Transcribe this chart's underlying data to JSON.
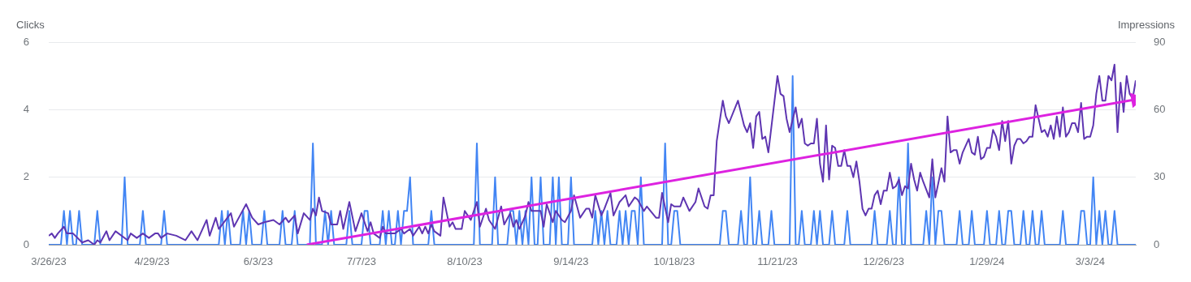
{
  "chart_data": {
    "type": "line",
    "ylabel": "Clicks",
    "y2label": "Impressions",
    "xlim": [
      "2023-03-26",
      "2024-03-18"
    ],
    "xticks": [
      {
        "value": "2023-03-26",
        "label": "3/26/23"
      },
      {
        "value": "2023-04-29",
        "label": "4/29/23"
      },
      {
        "value": "2023-06-03",
        "label": "6/3/23"
      },
      {
        "value": "2023-07-07",
        "label": "7/7/23"
      },
      {
        "value": "2023-08-10",
        "label": "8/10/23"
      },
      {
        "value": "2023-09-14",
        "label": "9/14/23"
      },
      {
        "value": "2023-10-18",
        "label": "10/18/23"
      },
      {
        "value": "2023-11-21",
        "label": "11/21/23"
      },
      {
        "value": "2023-12-26",
        "label": "12/26/23"
      },
      {
        "value": "2024-01-29",
        "label": "1/29/24"
      },
      {
        "value": "2024-03-03",
        "label": "3/3/24"
      }
    ],
    "ylim": [
      0,
      6
    ],
    "yticks": [
      0,
      2,
      4,
      6
    ],
    "y2lim": [
      0,
      90
    ],
    "y2ticks": [
      0,
      30,
      60,
      90
    ],
    "grid": "y",
    "series": [
      {
        "type": "line",
        "color": "#dd22e0",
        "axis": "y",
        "marker": "triangle",
        "x": [
          "2023-06-19",
          "2024-03-18"
        ],
        "values": [
          0,
          4.3
        ]
      },
      {
        "color": "#5e35b1",
        "axis": "y2",
        "x": [
          "2023-03-26",
          "2023-03-27",
          "2023-03-28",
          "2023-03-29",
          "2023-03-31",
          "2023-04-01",
          "2023-04-03",
          "2023-04-06",
          "2023-04-08",
          "2023-04-10",
          "2023-04-11",
          "2023-04-12",
          "2023-04-14",
          "2023-04-15",
          "2023-04-17",
          "2023-04-21",
          "2023-04-22",
          "2023-04-24",
          "2023-04-26",
          "2023-04-28",
          "2023-04-30",
          "2023-05-01",
          "2023-05-02",
          "2023-05-04",
          "2023-05-07",
          "2023-05-10",
          "2023-05-12",
          "2023-05-14",
          "2023-05-17",
          "2023-05-18",
          "2023-05-20",
          "2023-05-21",
          "2023-05-25",
          "2023-05-26",
          "2023-05-28",
          "2023-05-30",
          "2023-06-01",
          "2023-06-03",
          "2023-06-05",
          "2023-06-08",
          "2023-06-10",
          "2023-06-12",
          "2023-06-13",
          "2023-06-15",
          "2023-06-16",
          "2023-06-18",
          "2023-06-20",
          "2023-06-21",
          "2023-06-22",
          "2023-06-23",
          "2023-06-24",
          "2023-06-26",
          "2023-06-27",
          "2023-06-29",
          "2023-06-30",
          "2023-07-01",
          "2023-07-03",
          "2023-07-05",
          "2023-07-07",
          "2023-07-09",
          "2023-07-10",
          "2023-07-11",
          "2023-07-13",
          "2023-07-14",
          "2023-07-15",
          "2023-07-18",
          "2023-07-20",
          "2023-07-21",
          "2023-07-23",
          "2023-07-24",
          "2023-07-26",
          "2023-07-27",
          "2023-07-28",
          "2023-07-29",
          "2023-07-30",
          "2023-07-31",
          "2023-08-02",
          "2023-08-03",
          "2023-08-05",
          "2023-08-06",
          "2023-08-07",
          "2023-08-09",
          "2023-08-10",
          "2023-08-12",
          "2023-08-14",
          "2023-08-15",
          "2023-08-17",
          "2023-08-18",
          "2023-08-20",
          "2023-08-22",
          "2023-08-23",
          "2023-08-25",
          "2023-08-26",
          "2023-08-27",
          "2023-08-28",
          "2023-08-30",
          "2023-08-31",
          "2023-09-01",
          "2023-09-04",
          "2023-09-05",
          "2023-09-06",
          "2023-09-08",
          "2023-09-09",
          "2023-09-11",
          "2023-09-12",
          "2023-09-14",
          "2023-09-15",
          "2023-09-17",
          "2023-09-19",
          "2023-09-20",
          "2023-09-21",
          "2023-09-22",
          "2023-09-24",
          "2023-09-25",
          "2023-09-27",
          "2023-09-28",
          "2023-09-30",
          "2023-10-02",
          "2023-10-03",
          "2023-10-05",
          "2023-10-06",
          "2023-10-08",
          "2023-10-09",
          "2023-10-12",
          "2023-10-13",
          "2023-10-14",
          "2023-10-16",
          "2023-10-17",
          "2023-10-18",
          "2023-10-20",
          "2023-10-21",
          "2023-10-23",
          "2023-10-25",
          "2023-10-26",
          "2023-10-28",
          "2023-10-29",
          "2023-10-30",
          "2023-10-31",
          "2023-11-01",
          "2023-11-03",
          "2023-11-04",
          "2023-11-05",
          "2023-11-08",
          "2023-11-10",
          "2023-11-11",
          "2023-11-12",
          "2023-11-13",
          "2023-11-14",
          "2023-11-15",
          "2023-11-16",
          "2023-11-17",
          "2023-11-18",
          "2023-11-21",
          "2023-11-22",
          "2023-11-23",
          "2023-11-24",
          "2023-11-25",
          "2023-11-27",
          "2023-11-28",
          "2023-11-29",
          "2023-11-30",
          "2023-12-01",
          "2023-12-02",
          "2023-12-03",
          "2023-12-04",
          "2023-12-05",
          "2023-12-06",
          "2023-12-07",
          "2023-12-08",
          "2023-12-09",
          "2023-12-10",
          "2023-12-11",
          "2023-12-12",
          "2023-12-13",
          "2023-12-14",
          "2023-12-15",
          "2023-12-16",
          "2023-12-17",
          "2023-12-18",
          "2023-12-19",
          "2023-12-20",
          "2023-12-21",
          "2023-12-22",
          "2023-12-23",
          "2023-12-24",
          "2023-12-25",
          "2023-12-26",
          "2023-12-27",
          "2023-12-28",
          "2023-12-29",
          "2023-12-30",
          "2023-12-31",
          "2024-01-01",
          "2024-01-02",
          "2024-01-03",
          "2024-01-04",
          "2024-01-05",
          "2024-01-06",
          "2024-01-07",
          "2024-01-08",
          "2024-01-10",
          "2024-01-11",
          "2024-01-12",
          "2024-01-14",
          "2024-01-15",
          "2024-01-16",
          "2024-01-17",
          "2024-01-18",
          "2024-01-19",
          "2024-01-20",
          "2024-01-21",
          "2024-01-23",
          "2024-01-24",
          "2024-01-25",
          "2024-01-26",
          "2024-01-27",
          "2024-01-28",
          "2024-01-29",
          "2024-01-30",
          "2024-01-31",
          "2024-02-01",
          "2024-02-02",
          "2024-02-03",
          "2024-02-04",
          "2024-02-05",
          "2024-02-06",
          "2024-02-07",
          "2024-02-08",
          "2024-02-09",
          "2024-02-10",
          "2024-02-11",
          "2024-02-12",
          "2024-02-13",
          "2024-02-14",
          "2024-02-16",
          "2024-02-17",
          "2024-02-18",
          "2024-02-19",
          "2024-02-20",
          "2024-02-21",
          "2024-02-22",
          "2024-02-23",
          "2024-02-24",
          "2024-02-25",
          "2024-02-26",
          "2024-02-27",
          "2024-02-28",
          "2024-02-29",
          "2024-03-01",
          "2024-03-02",
          "2024-03-03",
          "2024-03-04",
          "2024-03-05",
          "2024-03-06",
          "2024-03-07",
          "2024-03-08",
          "2024-03-09",
          "2024-03-10",
          "2024-03-11",
          "2024-03-12",
          "2024-03-13",
          "2024-03-14",
          "2024-03-15",
          "2024-03-16",
          "2024-03-17",
          "2024-03-18"
        ],
        "values": [
          4,
          5,
          3,
          5,
          8,
          5,
          5,
          1,
          2,
          0,
          2,
          1,
          6,
          2,
          6,
          2,
          5,
          3,
          5,
          3,
          5,
          5,
          3,
          5,
          4,
          2,
          6,
          2,
          11,
          4,
          12,
          7,
          14,
          8,
          13,
          18,
          12,
          9,
          10,
          11,
          9,
          12,
          10,
          13,
          5,
          14,
          11,
          16,
          13,
          21,
          15,
          14,
          9,
          9,
          15,
          7,
          19,
          6,
          14,
          6,
          10,
          5,
          3,
          8,
          5,
          5,
          7,
          5,
          7,
          4,
          8,
          5,
          8,
          5,
          9,
          6,
          4,
          21,
          8,
          10,
          7,
          7,
          15,
          11,
          19,
          8,
          16,
          11,
          7,
          17,
          9,
          14,
          8,
          11,
          7,
          13,
          19,
          15,
          15,
          8,
          18,
          10,
          15,
          11,
          10,
          15,
          22,
          12,
          16,
          16,
          12,
          22,
          13,
          16,
          23,
          13,
          19,
          22,
          17,
          21,
          20,
          15,
          17,
          12,
          12,
          23,
          10,
          18,
          17,
          17,
          21,
          15,
          19,
          25,
          17,
          16,
          22,
          22,
          46,
          64,
          57,
          54,
          64,
          53,
          50,
          54,
          43,
          57,
          59,
          47,
          48,
          41,
          75,
          67,
          66,
          56,
          50,
          61,
          52,
          56,
          45,
          44,
          45,
          45,
          56,
          36,
          28,
          53,
          29,
          44,
          43,
          35,
          35,
          42,
          35,
          35,
          30,
          37,
          28,
          16,
          13,
          16,
          16,
          22,
          24,
          18,
          24,
          24,
          32,
          25,
          26,
          29,
          22,
          26,
          25,
          36,
          29,
          24,
          32,
          28,
          21,
          38,
          21,
          34,
          28,
          57,
          41,
          42,
          42,
          36,
          41,
          47,
          41,
          40,
          48,
          38,
          39,
          43,
          43,
          51,
          48,
          42,
          55,
          46,
          55,
          36,
          44,
          47,
          47,
          45,
          46,
          48,
          48,
          62,
          50,
          51,
          48,
          53,
          47,
          57,
          48,
          61,
          48,
          50,
          54,
          54,
          50,
          63,
          47,
          48,
          48,
          53,
          67,
          75,
          64,
          64,
          75,
          73,
          80,
          50,
          72,
          59,
          75,
          67,
          65,
          73
        ]
      },
      {
        "color": "#4285f4",
        "axis": "y",
        "x": [
          "2023-03-26",
          "2023-03-30",
          "2023-03-31",
          "2023-04-01",
          "2023-04-02",
          "2023-04-03",
          "2023-04-04",
          "2023-04-05",
          "2023-04-06",
          "2023-04-10",
          "2023-04-11",
          "2023-04-12",
          "2023-04-19",
          "2023-04-20",
          "2023-04-21",
          "2023-04-25",
          "2023-04-26",
          "2023-04-27",
          "2023-05-02",
          "2023-05-03",
          "2023-05-04",
          "2023-05-21",
          "2023-05-22",
          "2023-05-23",
          "2023-05-24",
          "2023-05-25",
          "2023-05-28",
          "2023-05-29",
          "2023-05-30",
          "2023-05-31",
          "2023-06-01",
          "2023-06-04",
          "2023-06-05",
          "2023-06-06",
          "2023-06-10",
          "2023-06-11",
          "2023-06-12",
          "2023-06-14",
          "2023-06-15",
          "2023-06-16",
          "2023-06-20",
          "2023-06-21",
          "2023-06-22",
          "2023-06-24",
          "2023-06-25",
          "2023-06-26",
          "2023-06-27",
          "2023-06-28",
          "2023-07-02",
          "2023-07-03",
          "2023-07-04",
          "2023-07-07",
          "2023-07-08",
          "2023-07-09",
          "2023-07-10",
          "2023-07-13",
          "2023-07-14",
          "2023-07-15",
          "2023-07-16",
          "2023-07-17",
          "2023-07-18",
          "2023-07-19",
          "2023-07-20",
          "2023-07-21",
          "2023-07-22",
          "2023-07-23",
          "2023-07-24",
          "2023-07-29",
          "2023-07-30",
          "2023-07-31",
          "2023-08-13",
          "2023-08-14",
          "2023-08-15",
          "2023-08-19",
          "2023-08-20",
          "2023-08-21",
          "2023-08-24",
          "2023-08-25",
          "2023-08-26",
          "2023-08-27",
          "2023-08-28",
          "2023-08-29",
          "2023-08-30",
          "2023-08-31",
          "2023-09-01",
          "2023-09-02",
          "2023-09-03",
          "2023-09-04",
          "2023-09-05",
          "2023-09-07",
          "2023-09-08",
          "2023-09-09",
          "2023-09-10",
          "2023-09-11",
          "2023-09-13",
          "2023-09-14",
          "2023-09-15",
          "2023-09-21",
          "2023-09-22",
          "2023-09-23",
          "2023-09-24",
          "2023-09-25",
          "2023-09-26",
          "2023-09-27",
          "2023-09-29",
          "2023-09-30",
          "2023-10-01",
          "2023-10-02",
          "2023-10-03",
          "2023-10-04",
          "2023-10-05",
          "2023-10-06",
          "2023-10-07",
          "2023-10-08",
          "2023-10-14",
          "2023-10-15",
          "2023-10-16",
          "2023-10-17",
          "2023-10-18",
          "2023-10-19",
          "2023-10-20",
          "2023-11-02",
          "2023-11-03",
          "2023-11-04",
          "2023-11-05",
          "2023-11-08",
          "2023-11-09",
          "2023-11-10",
          "2023-11-11",
          "2023-11-12",
          "2023-11-13",
          "2023-11-14",
          "2023-11-15",
          "2023-11-16",
          "2023-11-18",
          "2023-11-19",
          "2023-11-20",
          "2023-11-25",
          "2023-11-26",
          "2023-11-27",
          "2023-11-28",
          "2023-11-29",
          "2023-11-30",
          "2023-12-02",
          "2023-12-03",
          "2023-12-04",
          "2023-12-05",
          "2023-12-06",
          "2023-12-08",
          "2023-12-09",
          "2023-12-10",
          "2023-12-13",
          "2023-12-14",
          "2023-12-15",
          "2023-12-22",
          "2023-12-23",
          "2023-12-24",
          "2023-12-27",
          "2023-12-28",
          "2023-12-29",
          "2023-12-30",
          "2023-12-31",
          "2024-01-01",
          "2024-01-02",
          "2024-01-03",
          "2024-01-04",
          "2024-01-08",
          "2024-01-09",
          "2024-01-10",
          "2024-01-11",
          "2024-01-12",
          "2024-01-13",
          "2024-01-14",
          "2024-01-15",
          "2024-01-19",
          "2024-01-20",
          "2024-01-21",
          "2024-01-23",
          "2024-01-24",
          "2024-01-25",
          "2024-01-28",
          "2024-01-29",
          "2024-01-30",
          "2024-02-01",
          "2024-02-02",
          "2024-02-03",
          "2024-02-04",
          "2024-02-05",
          "2024-02-06",
          "2024-02-07",
          "2024-02-09",
          "2024-02-10",
          "2024-02-11",
          "2024-02-12",
          "2024-02-13",
          "2024-02-14",
          "2024-02-15",
          "2024-02-16",
          "2024-02-17",
          "2024-02-22",
          "2024-02-23",
          "2024-02-24",
          "2024-02-28",
          "2024-02-29",
          "2024-03-01",
          "2024-03-02",
          "2024-03-03",
          "2024-03-04",
          "2024-03-05",
          "2024-03-06",
          "2024-03-07",
          "2024-03-08",
          "2024-03-09",
          "2024-03-10",
          "2024-03-11",
          "2024-03-12",
          "2024-03-18"
        ],
        "values": [
          0,
          0,
          1,
          0,
          1,
          0,
          0,
          1,
          0,
          0,
          1,
          0,
          0,
          2,
          0,
          0,
          1,
          0,
          0,
          1,
          0,
          0,
          1,
          0,
          1,
          0,
          0,
          1,
          0,
          1,
          0,
          0,
          1,
          0,
          0,
          1,
          0,
          0,
          1,
          0,
          0,
          3,
          0,
          0,
          1,
          0,
          1,
          0,
          0,
          1,
          0,
          0,
          1,
          1,
          0,
          0,
          1,
          0,
          1,
          0,
          0,
          1,
          0,
          1,
          1,
          2,
          0,
          0,
          1,
          0,
          0,
          3,
          0,
          0,
          2,
          0,
          0,
          1,
          1,
          0,
          1,
          0,
          1,
          0,
          2,
          0,
          0,
          2,
          0,
          0,
          2,
          0,
          2,
          0,
          0,
          2,
          0,
          0,
          1,
          0,
          1,
          0,
          1,
          0,
          0,
          1,
          0,
          1,
          0,
          1,
          1,
          0,
          2,
          0,
          0,
          3,
          0,
          0,
          1,
          1,
          0,
          0,
          1,
          1,
          0,
          0,
          1,
          0,
          0,
          2,
          0,
          0,
          1,
          0,
          0,
          1,
          0,
          0,
          5,
          0,
          0,
          1,
          0,
          0,
          1,
          0,
          1,
          0,
          0,
          1,
          0,
          0,
          1,
          0,
          0,
          1,
          0,
          0,
          1,
          0,
          0,
          2,
          0,
          0,
          3,
          0,
          0,
          1,
          0,
          2,
          0,
          1,
          1,
          0,
          0,
          1,
          0,
          0,
          1,
          0,
          0,
          1,
          0,
          0,
          1,
          0,
          0,
          1,
          1,
          0,
          0,
          1,
          0,
          0,
          1,
          0,
          0,
          1,
          0,
          0,
          1,
          0,
          0,
          1,
          1,
          0,
          0,
          2,
          0,
          1,
          0,
          1,
          0,
          0,
          1,
          0,
          0
        ]
      }
    ]
  }
}
